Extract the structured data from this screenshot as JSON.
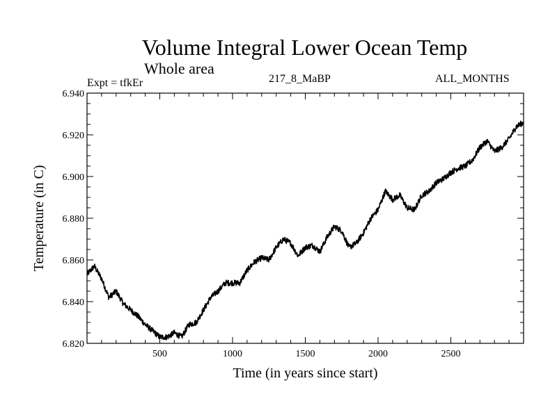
{
  "header": {
    "title": "Volume Integral Lower Ocean Temp",
    "subtitle": "Whole area",
    "expt": "Expt = tfkEr",
    "run": "217_8_MaBP",
    "months": "ALL_MONTHS"
  },
  "chart_data": {
    "type": "line",
    "xlabel": "Time (in years since start)",
    "ylabel": "Temperature (in C)",
    "xlim": [
      0,
      3000
    ],
    "ylim": [
      6.82,
      6.94
    ],
    "xticks": [
      500,
      1000,
      1500,
      2000,
      2500
    ],
    "xtick_labels": [
      "500",
      "1000",
      "1500",
      "2000",
      "2500"
    ],
    "yticks": [
      6.82,
      6.84,
      6.86,
      6.88,
      6.9,
      6.92,
      6.94
    ],
    "ytick_labels": [
      "6.820",
      "6.840",
      "6.860",
      "6.880",
      "6.900",
      "6.920",
      "6.940"
    ],
    "grid": false,
    "series": [
      {
        "x": [
          0,
          50,
          100,
          150,
          200,
          250,
          300,
          350,
          400,
          450,
          500,
          550,
          600,
          650,
          700,
          750,
          800,
          850,
          900,
          950,
          1000,
          1050,
          1100,
          1150,
          1200,
          1250,
          1300,
          1350,
          1400,
          1450,
          1500,
          1550,
          1600,
          1650,
          1700,
          1750,
          1800,
          1850,
          1900,
          1950,
          2000,
          2050,
          2100,
          2150,
          2200,
          2250,
          2300,
          2350,
          2400,
          2450,
          2500,
          2550,
          2600,
          2650,
          2700,
          2750,
          2800,
          2850,
          2900,
          2950,
          3000
        ],
        "y": [
          6.853,
          6.857,
          6.851,
          6.842,
          6.845,
          6.839,
          6.836,
          6.833,
          6.829,
          6.826,
          6.823,
          6.823,
          6.825,
          6.823,
          6.829,
          6.83,
          6.836,
          6.842,
          6.845,
          6.849,
          6.849,
          6.849,
          6.855,
          6.859,
          6.861,
          6.86,
          6.866,
          6.87,
          6.868,
          6.862,
          6.866,
          6.867,
          6.864,
          6.871,
          6.876,
          6.874,
          6.866,
          6.868,
          6.873,
          6.88,
          6.884,
          6.893,
          6.889,
          6.891,
          6.885,
          6.884,
          6.891,
          6.893,
          6.897,
          6.899,
          6.902,
          6.904,
          6.905,
          6.908,
          6.914,
          6.917,
          6.912,
          6.914,
          6.918,
          6.924,
          6.926
        ]
      }
    ]
  }
}
